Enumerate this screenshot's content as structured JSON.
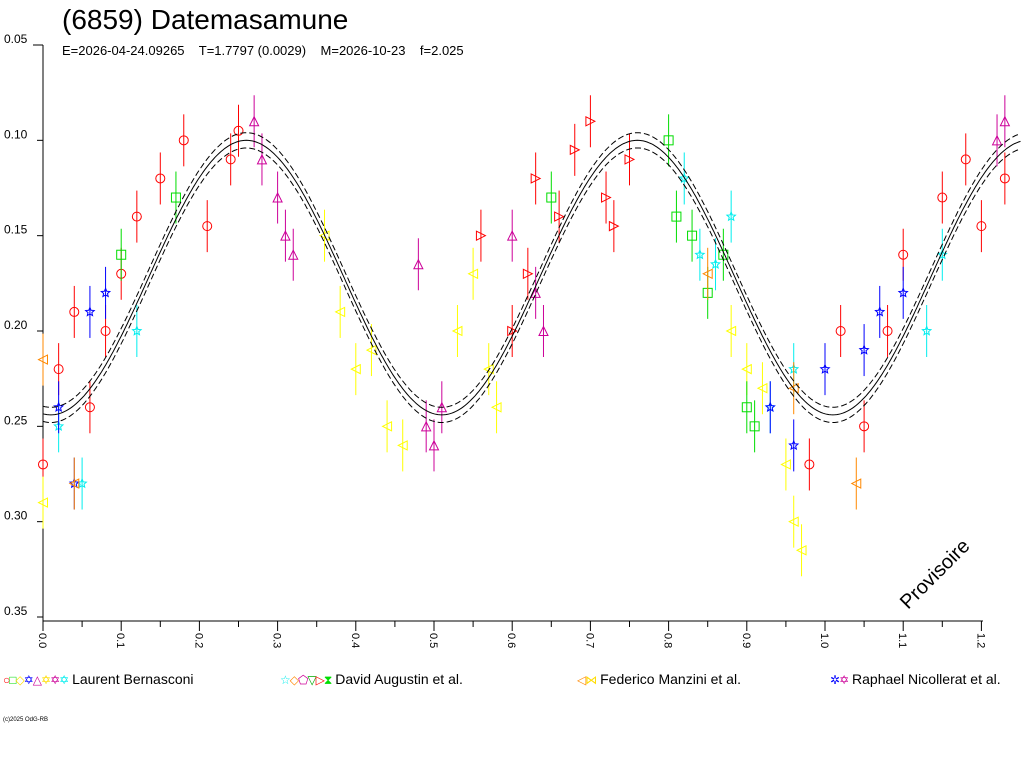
{
  "chart_data": {
    "type": "scatter",
    "title": "(6859) Datemasamune",
    "subtitle": {
      "epoch": "E=2026-04-24.09265",
      "period": "T=1.7797 (0.0029)",
      "mid": "M=2026-10-23",
      "f": "f=2.025"
    },
    "xlabel": "",
    "ylabel": "",
    "xlim": [
      0,
      1.25
    ],
    "ylim": [
      0.35,
      0.05
    ],
    "x_ticks": [
      "0.0",
      "0.1",
      "0.2",
      "0.3",
      "0.4",
      "0.5",
      "0.6",
      "0.7",
      "0.8",
      "0.9",
      "1.0",
      "1.1",
      "1.2"
    ],
    "y_ticks": [
      "0.05",
      "0.10",
      "0.15",
      "0.20",
      "0.25",
      "0.30",
      "0.35"
    ],
    "watermark": "Provisoire",
    "model": {
      "mean": 0.172,
      "amplitude": 0.072,
      "phase_shift": 0.01,
      "harmonic": 2
    },
    "series": [
      {
        "name": "red-circles",
        "color": "#ff0000",
        "symbol": "circle",
        "points": [
          [
            0.0,
            0.27
          ],
          [
            0.02,
            0.22
          ],
          [
            0.04,
            0.19
          ],
          [
            0.06,
            0.24
          ],
          [
            0.08,
            0.2
          ],
          [
            0.1,
            0.17
          ],
          [
            0.12,
            0.14
          ],
          [
            0.15,
            0.12
          ],
          [
            0.18,
            0.1
          ],
          [
            0.21,
            0.145
          ],
          [
            0.24,
            0.11
          ],
          [
            0.25,
            0.095
          ],
          [
            0.98,
            0.27
          ],
          [
            1.02,
            0.2
          ],
          [
            1.05,
            0.25
          ],
          [
            1.08,
            0.2
          ],
          [
            1.1,
            0.16
          ],
          [
            1.15,
            0.13
          ],
          [
            1.18,
            0.11
          ],
          [
            1.2,
            0.145
          ],
          [
            1.23,
            0.12
          ]
        ]
      },
      {
        "name": "red-triangles",
        "color": "#ff0000",
        "symbol": "tri-right",
        "points": [
          [
            0.56,
            0.15
          ],
          [
            0.6,
            0.2
          ],
          [
            0.62,
            0.17
          ],
          [
            0.63,
            0.12
          ],
          [
            0.66,
            0.14
          ],
          [
            0.68,
            0.105
          ],
          [
            0.7,
            0.09
          ],
          [
            0.72,
            0.13
          ],
          [
            0.73,
            0.145
          ],
          [
            0.75,
            0.11
          ]
        ]
      },
      {
        "name": "magenta",
        "color": "#cc0099",
        "symbol": "triangle",
        "points": [
          [
            0.27,
            0.09
          ],
          [
            0.28,
            0.11
          ],
          [
            0.3,
            0.13
          ],
          [
            0.31,
            0.15
          ],
          [
            0.32,
            0.16
          ],
          [
            0.48,
            0.165
          ],
          [
            0.49,
            0.25
          ],
          [
            0.5,
            0.26
          ],
          [
            0.51,
            0.24
          ],
          [
            0.6,
            0.15
          ],
          [
            0.63,
            0.18
          ],
          [
            0.64,
            0.2
          ],
          [
            1.22,
            0.1
          ],
          [
            1.23,
            0.09
          ]
        ]
      },
      {
        "name": "yellow",
        "color": "#ffff00",
        "symbol": "tri-left",
        "points": [
          [
            0.36,
            0.15
          ],
          [
            0.38,
            0.19
          ],
          [
            0.4,
            0.22
          ],
          [
            0.42,
            0.21
          ],
          [
            0.44,
            0.25
          ],
          [
            0.46,
            0.26
          ],
          [
            0.53,
            0.2
          ],
          [
            0.55,
            0.17
          ],
          [
            0.57,
            0.22
          ],
          [
            0.58,
            0.24
          ],
          [
            0.88,
            0.2
          ],
          [
            0.9,
            0.22
          ],
          [
            0.92,
            0.23
          ],
          [
            0.95,
            0.27
          ],
          [
            0.96,
            0.3
          ],
          [
            0.97,
            0.315
          ],
          [
            0.0,
            0.29
          ]
        ]
      },
      {
        "name": "green",
        "color": "#00dd00",
        "symbol": "square",
        "points": [
          [
            0.65,
            0.13
          ],
          [
            0.8,
            0.1
          ],
          [
            0.81,
            0.14
          ],
          [
            0.83,
            0.15
          ],
          [
            0.85,
            0.18
          ],
          [
            0.87,
            0.16
          ],
          [
            0.9,
            0.24
          ],
          [
            0.91,
            0.25
          ],
          [
            0.1,
            0.16
          ],
          [
            0.17,
            0.13
          ]
        ]
      },
      {
        "name": "cyan",
        "color": "#00eeee",
        "symbol": "star",
        "points": [
          [
            0.82,
            0.12
          ],
          [
            0.84,
            0.16
          ],
          [
            0.86,
            0.165
          ],
          [
            0.88,
            0.14
          ],
          [
            0.93,
            0.24
          ],
          [
            0.96,
            0.22
          ],
          [
            0.02,
            0.25
          ],
          [
            0.05,
            0.28
          ],
          [
            0.12,
            0.2
          ],
          [
            1.13,
            0.2
          ],
          [
            1.15,
            0.16
          ]
        ]
      },
      {
        "name": "blue",
        "color": "#0000ff",
        "symbol": "star",
        "points": [
          [
            0.02,
            0.24
          ],
          [
            0.04,
            0.28
          ],
          [
            0.06,
            0.19
          ],
          [
            0.08,
            0.18
          ],
          [
            0.93,
            0.24
          ],
          [
            0.96,
            0.26
          ],
          [
            1.0,
            0.22
          ],
          [
            1.05,
            0.21
          ],
          [
            1.07,
            0.19
          ],
          [
            1.1,
            0.18
          ]
        ]
      },
      {
        "name": "orange",
        "color": "#ff8800",
        "symbol": "tri-left",
        "points": [
          [
            0.0,
            0.215
          ],
          [
            0.04,
            0.28
          ],
          [
            1.04,
            0.28
          ],
          [
            0.96,
            0.23
          ],
          [
            0.85,
            0.17
          ]
        ]
      }
    ],
    "legend": [
      {
        "label": "Laurent Bernasconi",
        "symbols": [
          [
            "○",
            "#ff0000"
          ],
          [
            "□",
            "#00dd00"
          ],
          [
            "◇",
            "#ffdd00"
          ],
          [
            "✡",
            "#0000ff"
          ],
          [
            "△",
            "#cc0099"
          ],
          [
            "✡",
            "#ffdd00"
          ],
          [
            "✡",
            "#cc0099"
          ],
          [
            "✡",
            "#00eeee"
          ]
        ]
      },
      {
        "label": "David Augustin et al.",
        "symbols": [
          [
            "☆",
            "#00eeee"
          ],
          [
            "◇",
            "#ff8800"
          ],
          [
            "⬠",
            "#cc0099"
          ],
          [
            "▽",
            "#00aa00"
          ],
          [
            "▷",
            "#ff0000"
          ],
          [
            "⧗",
            "#00dd00"
          ]
        ]
      },
      {
        "label": "Federico Manzini et al.",
        "symbols": [
          [
            "◁",
            "#ff8800"
          ],
          [
            "⋈",
            "#ffdd00"
          ]
        ]
      },
      {
        "label": "Raphael Nicollerat et al.",
        "symbols": [
          [
            "✲",
            "#0000ff"
          ],
          [
            "✡",
            "#cc0099"
          ]
        ]
      }
    ],
    "legend_position": "bottom"
  },
  "copyright": "(c)2025 OdG-RB"
}
